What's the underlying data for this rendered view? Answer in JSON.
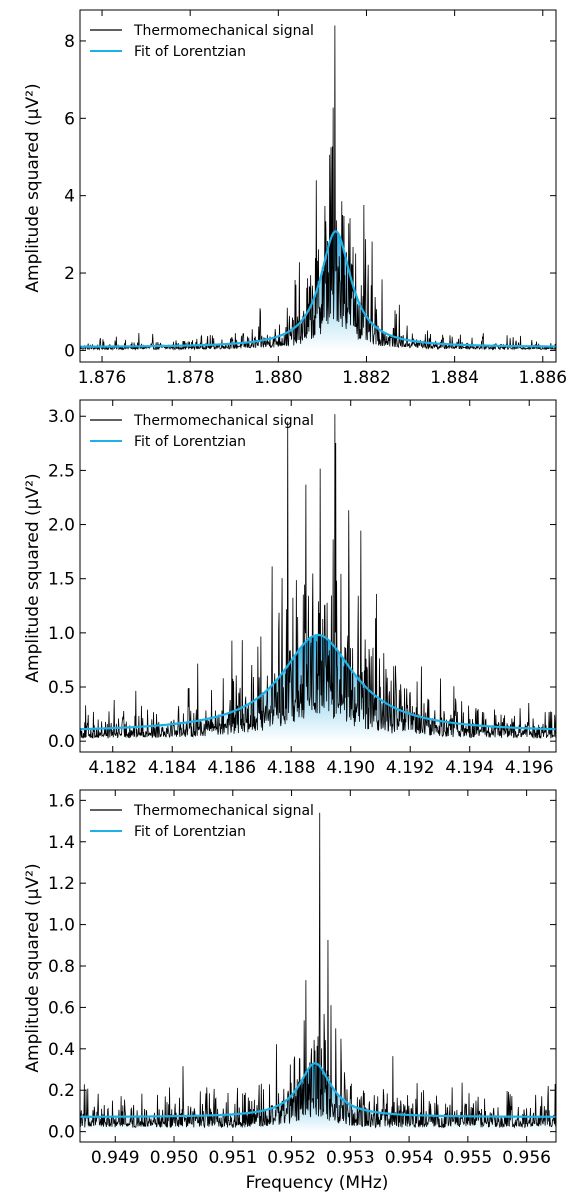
{
  "colors": {
    "signal": "#000000",
    "fit": "#1eb0e6",
    "fill_top": "#1aa3dc",
    "fill_bottom": "#ffffff"
  },
  "chart_data": [
    {
      "type": "line",
      "ylabel": "Amplitude squared  (μV²)",
      "xlabel": "",
      "xlim": [
        1.8755,
        1.8863
      ],
      "ylim": [
        -0.3,
        8.8
      ],
      "xticks": [
        "1.876",
        "1.878",
        "1.880",
        "1.882",
        "1.884",
        "1.886"
      ],
      "xtick_values": [
        1.876,
        1.878,
        1.88,
        1.882,
        1.884,
        1.886
      ],
      "yticks": [
        "0",
        "2",
        "4",
        "6",
        "8"
      ],
      "ytick_values": [
        0,
        2,
        4,
        6,
        8
      ],
      "legend": [
        "Thermomechanical signal",
        "Fit of Lorentzian"
      ],
      "legend_position": "top-left",
      "series": [
        {
          "name": "Thermomechanical signal",
          "noise_from_fit": true,
          "peak_max": 8.4,
          "baseline": 0.08
        },
        {
          "name": "Fit of Lorentzian",
          "lorentzian": {
            "center": 1.8813,
            "hwhm": 0.00042,
            "amplitude": 3.0,
            "baseline": 0.08
          }
        }
      ]
    },
    {
      "type": "line",
      "ylabel": "Amplitude squared  (μV²)",
      "xlabel": "",
      "xlim": [
        4.1809,
        4.1969
      ],
      "ylim": [
        -0.1,
        3.15
      ],
      "xticks": [
        "4.182",
        "4.184",
        "4.186",
        "4.188",
        "4.190",
        "4.192",
        "4.194",
        "4.196"
      ],
      "xtick_values": [
        4.182,
        4.184,
        4.186,
        4.188,
        4.19,
        4.192,
        4.194,
        4.196
      ],
      "yticks": [
        "0.0",
        "0.5",
        "1.0",
        "1.5",
        "2.0",
        "2.5",
        "3.0"
      ],
      "ytick_values": [
        0.0,
        0.5,
        1.0,
        1.5,
        2.0,
        2.5,
        3.0
      ],
      "legend": [
        "Thermomechanical signal",
        "Fit of Lorentzian"
      ],
      "legend_position": "top-left",
      "series": [
        {
          "name": "Thermomechanical signal",
          "noise_from_fit": true,
          "peak_max": 3.02,
          "baseline": 0.08
        },
        {
          "name": "Fit of Lorentzian",
          "lorentzian": {
            "center": 4.1889,
            "hwhm": 0.0015,
            "amplitude": 0.9,
            "baseline": 0.08
          }
        }
      ]
    },
    {
      "type": "line",
      "ylabel": "Amplitude squared  (μV²)",
      "xlabel": "Frequency (MHz)",
      "xlim": [
        0.9484,
        0.9565
      ],
      "ylim": [
        -0.05,
        1.65
      ],
      "xticks": [
        "0.949",
        "0.950",
        "0.951",
        "0.952",
        "0.953",
        "0.954",
        "0.955",
        "0.956"
      ],
      "xtick_values": [
        0.949,
        0.95,
        0.951,
        0.952,
        0.953,
        0.954,
        0.955,
        0.956
      ],
      "yticks": [
        "0.0",
        "0.2",
        "0.4",
        "0.6",
        "0.8",
        "1.0",
        "1.2",
        "1.4",
        "1.6"
      ],
      "ytick_values": [
        0.0,
        0.2,
        0.4,
        0.6,
        0.8,
        1.0,
        1.2,
        1.4,
        1.6
      ],
      "legend": [
        "Thermomechanical signal",
        "Fit of Lorentzian"
      ],
      "legend_position": "top-left",
      "series": [
        {
          "name": "Thermomechanical signal",
          "noise_from_fit": true,
          "peak_max": 1.54,
          "baseline": 0.07
        },
        {
          "name": "Fit of Lorentzian",
          "lorentzian": {
            "center": 0.9524,
            "hwhm": 0.00033,
            "amplitude": 0.26,
            "baseline": 0.07
          }
        }
      ]
    }
  ]
}
